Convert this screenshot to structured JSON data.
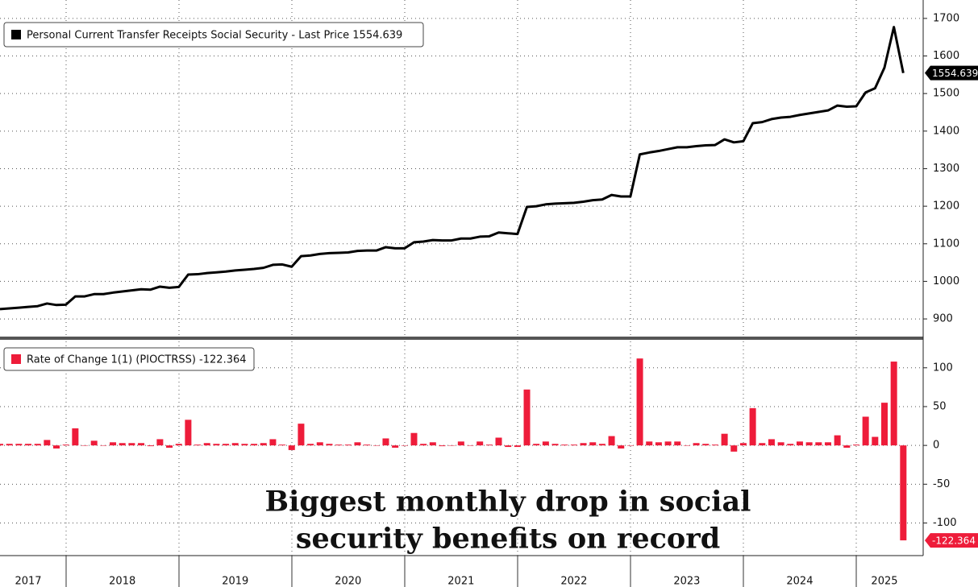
{
  "chart_data": [
    {
      "type": "line",
      "legend": "Personal Current Transfer Receipts Social Security - Last Price 1554.639",
      "ylim": [
        853,
        1749
      ],
      "yticks": [
        900,
        1000,
        1100,
        1200,
        1300,
        1400,
        1500,
        1600,
        1700
      ],
      "grid": true,
      "series": [
        {
          "name": "Personal Current Transfer Receipts Social Security",
          "color": "#000000",
          "values": [
            926,
            928,
            930,
            932,
            934,
            941,
            937,
            938,
            960,
            960,
            966,
            966,
            970,
            973,
            976,
            979,
            978,
            986,
            983,
            985,
            1018,
            1019,
            1022,
            1024,
            1026,
            1029,
            1031,
            1033,
            1036,
            1044,
            1045,
            1039,
            1067,
            1069,
            1073,
            1075,
            1076,
            1077,
            1081,
            1082,
            1082,
            1091,
            1088,
            1088,
            1104,
            1106,
            1110,
            1109,
            1109,
            1114,
            1114,
            1119,
            1120,
            1130,
            1128,
            1126,
            1198,
            1200,
            1205,
            1207,
            1208,
            1209,
            1212,
            1216,
            1218,
            1230,
            1226,
            1226,
            1338,
            1343,
            1347,
            1352,
            1357,
            1357,
            1360,
            1362,
            1363,
            1378,
            1370,
            1373,
            1421,
            1424,
            1432,
            1436,
            1438,
            1443,
            1447,
            1451,
            1455,
            1468,
            1465,
            1466,
            1503,
            1514,
            1569,
            1677,
            1554.639
          ]
        }
      ]
    },
    {
      "type": "bar",
      "legend": "Rate of Change 1(1) (PIOCTRSS) -122.364",
      "annotation": [
        "Biggest monthly drop in social",
        "security benefits on record"
      ],
      "ylim": [
        -142,
        134
      ],
      "yticks": [
        -100,
        -50,
        0,
        50,
        100
      ],
      "grid": true,
      "categories": [
        null,
        null,
        null,
        "2017",
        null,
        null,
        null,
        null,
        null,
        null,
        null,
        null,
        null,
        "2018",
        null,
        null,
        null,
        null,
        null,
        null,
        null,
        null,
        null,
        null,
        null,
        "2019",
        null,
        null,
        null,
        null,
        null,
        null,
        null,
        null,
        null,
        null,
        null,
        "2020",
        null,
        null,
        null,
        null,
        null,
        null,
        null,
        null,
        null,
        null,
        null,
        "2021",
        null,
        null,
        null,
        null,
        null,
        null,
        null,
        null,
        null,
        null,
        null,
        "2022",
        null,
        null,
        null,
        null,
        null,
        null,
        null,
        null,
        null,
        null,
        null,
        "2023",
        null,
        null,
        null,
        null,
        null,
        null,
        null,
        null,
        null,
        null,
        null,
        "2024",
        null,
        null,
        null,
        null,
        null,
        null,
        null,
        null,
        "2025",
        null,
        null
      ],
      "series": [
        {
          "name": "Rate of Change 1(1) (PIOCTRSS)",
          "color": "#ee1c3a",
          "values": [
            2,
            2,
            2,
            2,
            2,
            7,
            -4,
            1,
            22,
            0,
            6,
            0,
            4,
            3,
            3,
            3,
            -1,
            8,
            -3,
            2,
            33,
            1,
            3,
            2,
            2,
            3,
            2,
            2,
            3,
            8,
            1,
            -6,
            28,
            2,
            4,
            2,
            1,
            1,
            4,
            1,
            0,
            9,
            -3,
            0,
            16,
            2,
            4,
            -1,
            0,
            5,
            0,
            5,
            1,
            10,
            -2,
            -2,
            72,
            2,
            5,
            2,
            1,
            1,
            3,
            4,
            2,
            12,
            -4,
            0,
            112,
            5,
            4,
            5,
            5,
            0,
            3,
            2,
            1,
            15,
            -8,
            3,
            48,
            3,
            8,
            4,
            2,
            5,
            4,
            4,
            4,
            13,
            -3,
            1,
            37,
            11,
            55,
            108,
            -122.364
          ]
        }
      ]
    }
  ]
}
